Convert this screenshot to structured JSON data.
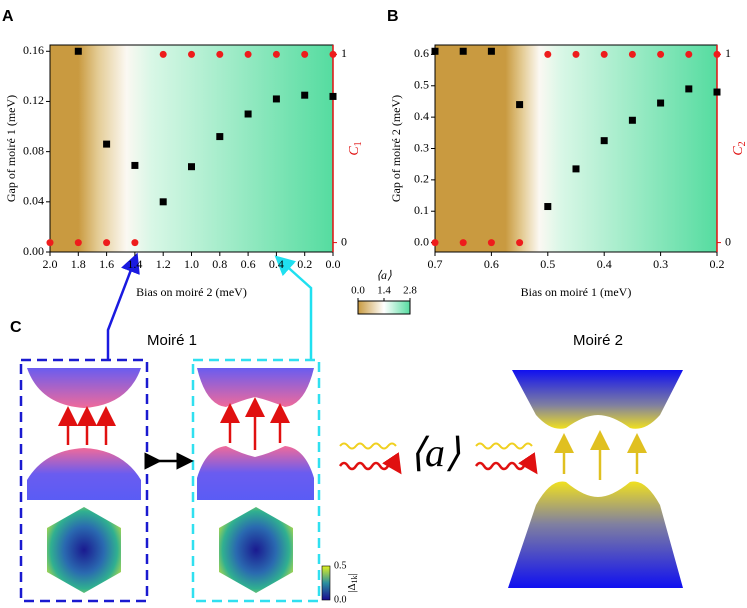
{
  "chart_data": [
    {
      "type": "scatter",
      "panel_label": "A",
      "x_label": "Bias on  moiré  2 (meV)",
      "y_label": "Gap of  moiré  1 (meV)",
      "y2_label": {
        "symbol": "C",
        "subscript": "1"
      },
      "x": [
        2.0,
        1.8,
        1.6,
        1.4,
        1.2,
        1.0,
        0.8,
        0.6,
        0.4,
        0.2,
        0.0
      ],
      "series": [
        {
          "color": "#000000",
          "marker": "square",
          "axis": "y",
          "values": [
            null,
            0.16,
            0.086,
            0.069,
            0.04,
            0.068,
            0.092,
            0.11,
            0.122,
            0.125,
            0.124
          ]
        },
        {
          "color": "#ee1c1c",
          "marker": "circle",
          "axis": "y2",
          "values": [
            0,
            0,
            0,
            0,
            1,
            1,
            1,
            1,
            1,
            1,
            1
          ]
        }
      ],
      "xlim": [
        2.0,
        0.0
      ],
      "xticks": [
        {
          "value": 2,
          "label": "2.0"
        },
        1.8,
        1.6,
        1.4,
        1.2,
        {
          "value": 1,
          "label": "1.0"
        },
        0.8,
        0.6,
        0.4,
        0.2,
        {
          "value": 0,
          "label": "0.0"
        }
      ],
      "ylim": [
        0,
        0.165
      ],
      "yticks": [
        {
          "value": 0,
          "label": "0.00"
        },
        0.04,
        0.08,
        0.12,
        0.16
      ],
      "y2lim": [
        -0.05,
        1.05
      ],
      "y2ticks": [
        0,
        1
      ],
      "colorbar": {
        "label": "⟨a⟩",
        "lim": [
          0,
          2.8
        ],
        "ticks": [
          {
            "value": 0,
            "label": "0.0"
          },
          1.4,
          2.8
        ]
      }
    },
    {
      "type": "scatter",
      "panel_label": "B",
      "x_label": "Bias on  moiré  1 (meV)",
      "y_label": "Gap of  moiré  2 (meV)",
      "y2_label": {
        "symbol": "C",
        "subscript": "2"
      },
      "x": [
        0.7,
        0.65,
        0.6,
        0.55,
        0.5,
        0.45,
        0.4,
        0.35,
        0.3,
        0.25,
        0.2
      ],
      "series": [
        {
          "color": "#000000",
          "marker": "square",
          "axis": "y",
          "values": [
            0.61,
            0.61,
            0.61,
            0.44,
            0.115,
            0.235,
            0.325,
            0.39,
            0.445,
            0.49,
            0.48
          ]
        },
        {
          "color": "#ee1c1c",
          "marker": "circle",
          "axis": "y2",
          "values": [
            0,
            0,
            0,
            0,
            1,
            1,
            1,
            1,
            1,
            1,
            1
          ]
        }
      ],
      "xlim": [
        0.7,
        0.2
      ],
      "xticks": [
        0.7,
        0.6,
        0.5,
        0.4,
        0.3,
        0.2
      ],
      "ylim": [
        -0.03,
        0.63
      ],
      "yticks": [
        {
          "value": 0,
          "label": "0.0"
        },
        0.1,
        0.2,
        0.3,
        0.4,
        0.5,
        0.6
      ],
      "y2lim": [
        -0.05,
        1.05
      ],
      "y2ticks": [
        0,
        1
      ]
    }
  ],
  "diagram": {
    "panel_label": "C",
    "moire1_title": "Moiré  1",
    "moire2_title": "Moiré  2",
    "center_symbol": "⟨a⟩",
    "colorbar": {
      "pre": "|Δ",
      "sub": "1k",
      "post": "|",
      "ticks": [
        "0.5",
        "0.0"
      ]
    }
  }
}
